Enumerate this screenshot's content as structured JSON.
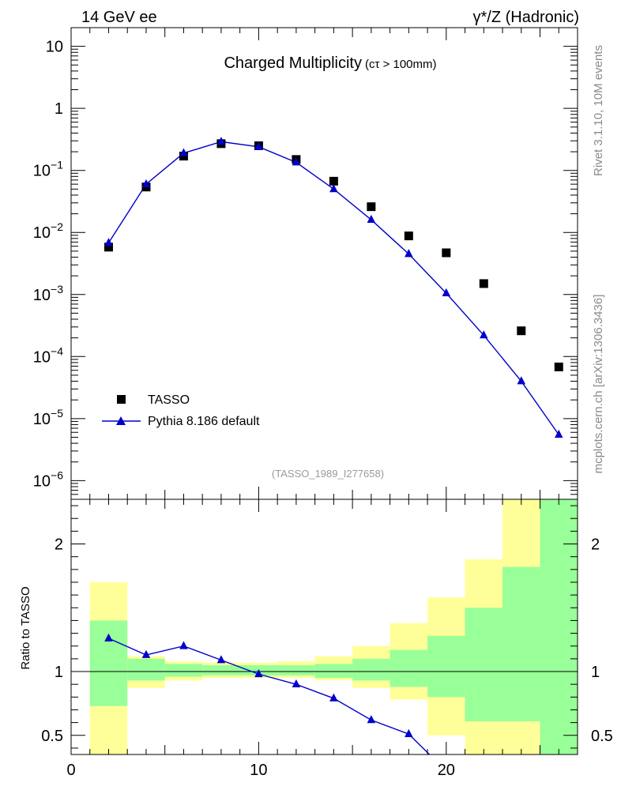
{
  "header": {
    "left": "14 GeV ee",
    "right": "γ*/Z (Hadronic)"
  },
  "side_labels": {
    "rivet": "Rivet 3.1.10,  10M events",
    "mcplots": "mcplots.cern.ch [arXiv:1306.3436]"
  },
  "chart_data": [
    {
      "panel": "main",
      "type": "scatter",
      "title": "Charged Multiplicity",
      "title_suffix": "(cτ > 100mm)",
      "watermark": "(TASSO_1989_I277658)",
      "yscale": "log",
      "xlim": [
        0,
        27
      ],
      "ylim": [
        5e-07,
        20
      ],
      "ytick_labels": [
        {
          "value": 10,
          "label": "10"
        },
        {
          "value": 1,
          "label": "1"
        },
        {
          "value": 0.1,
          "base": "10",
          "exp": "−1"
        },
        {
          "value": 0.01,
          "base": "10",
          "exp": "−2"
        },
        {
          "value": 0.001,
          "base": "10",
          "exp": "−3"
        },
        {
          "value": 0.0001,
          "base": "10",
          "exp": "−4"
        },
        {
          "value": 1e-05,
          "base": "10",
          "exp": "−5"
        },
        {
          "value": 1e-06,
          "base": "10",
          "exp": "−6"
        }
      ],
      "legend_position": "bottom-left",
      "series": [
        {
          "name": "TASSO",
          "marker": "square",
          "color": "#000000",
          "x": [
            2,
            4,
            6,
            8,
            10,
            12,
            14,
            16,
            18,
            20,
            22,
            24,
            26
          ],
          "y": [
            0.0058,
            0.054,
            0.17,
            0.27,
            0.25,
            0.15,
            0.067,
            0.026,
            0.0088,
            0.0047,
            0.0015,
            0.00026,
            6.8e-05
          ]
        },
        {
          "name": "Pythia 8.186 default",
          "marker": "triangle",
          "color": "#0000cc",
          "x": [
            2,
            4,
            6,
            8,
            10,
            12,
            14,
            16,
            18,
            20,
            22,
            24,
            26
          ],
          "y": [
            0.0068,
            0.06,
            0.19,
            0.29,
            0.24,
            0.135,
            0.05,
            0.016,
            0.0045,
            0.00105,
            0.00022,
            4e-05,
            5.5e-06
          ]
        }
      ]
    },
    {
      "panel": "ratio",
      "type": "line",
      "ylabel": "Ratio to TASSO",
      "xlim": [
        0,
        27
      ],
      "ylim": [
        0.35,
        2.35
      ],
      "xticks": [
        0,
        10,
        20
      ],
      "yticks": [
        0.5,
        1,
        2
      ],
      "reference_line": 1,
      "bands": {
        "x_edges": [
          1,
          3,
          5,
          7,
          9,
          11,
          13,
          15,
          17,
          19,
          21,
          23,
          25,
          27
        ],
        "outer_lo": [
          0.35,
          0.87,
          0.93,
          0.95,
          0.95,
          0.95,
          0.93,
          0.87,
          0.78,
          0.5,
          0.35,
          0.35,
          0.35
        ],
        "outer_hi": [
          1.7,
          1.12,
          1.08,
          1.07,
          1.07,
          1.08,
          1.12,
          1.2,
          1.38,
          1.58,
          1.88,
          2.4,
          2.4
        ],
        "inner_lo": [
          0.73,
          0.93,
          0.96,
          0.97,
          0.97,
          0.97,
          0.95,
          0.93,
          0.88,
          0.8,
          0.61,
          0.61,
          0.35
        ],
        "inner_hi": [
          1.4,
          1.1,
          1.06,
          1.05,
          1.05,
          1.05,
          1.06,
          1.1,
          1.17,
          1.28,
          1.5,
          1.82,
          2.4
        ],
        "outer_color": "#ffff99",
        "inner_color": "#99ff99"
      },
      "series": [
        {
          "name": "Pythia 8.186 default / TASSO",
          "marker": "triangle",
          "color": "#0000cc",
          "x": [
            2,
            4,
            6,
            8,
            10,
            12,
            14,
            16,
            18,
            20
          ],
          "y": [
            1.26,
            1.13,
            1.2,
            1.09,
            0.98,
            0.9,
            0.79,
            0.62,
            0.51,
            0.22
          ]
        }
      ]
    }
  ]
}
